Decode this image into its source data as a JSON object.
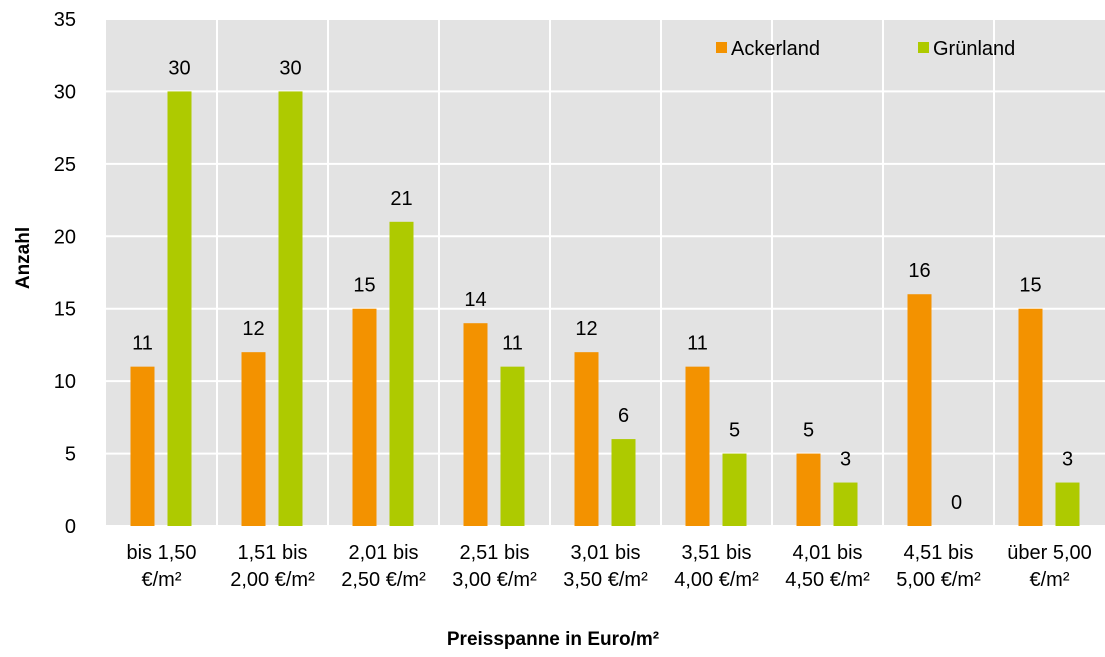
{
  "chart_data": {
    "type": "bar",
    "xlabel": "Preisspanne in Euro/m²",
    "ylabel": "Anzahl",
    "ylim": [
      0,
      35
    ],
    "yticks": [
      "0",
      "5",
      "10",
      "15",
      "20",
      "25",
      "30",
      "35"
    ],
    "grid": true,
    "legend_position": "top-right",
    "categories": [
      [
        "bis 1,50",
        "€/m²"
      ],
      [
        "1,51 bis",
        "2,00 €/m²"
      ],
      [
        "2,01 bis",
        "2,50 €/m²"
      ],
      [
        "2,51 bis",
        "3,00 €/m²"
      ],
      [
        "3,01 bis",
        "3,50 €/m²"
      ],
      [
        "3,51 bis",
        "4,00 €/m²"
      ],
      [
        "4,01 bis",
        "4,50 €/m²"
      ],
      [
        "4,51 bis",
        "5,00 €/m²"
      ],
      [
        "über 5,00",
        "€/m²"
      ]
    ],
    "series": [
      {
        "name": "Ackerland",
        "color": "#F39200",
        "values": [
          11,
          12,
          15,
          14,
          12,
          11,
          5,
          16,
          15
        ]
      },
      {
        "name": "Grünland",
        "color": "#AECA00",
        "values": [
          30,
          30,
          21,
          11,
          6,
          5,
          3,
          0,
          3
        ]
      }
    ],
    "plot_background": "#E3E3E3",
    "gridline_color": "#FFFFFF"
  }
}
